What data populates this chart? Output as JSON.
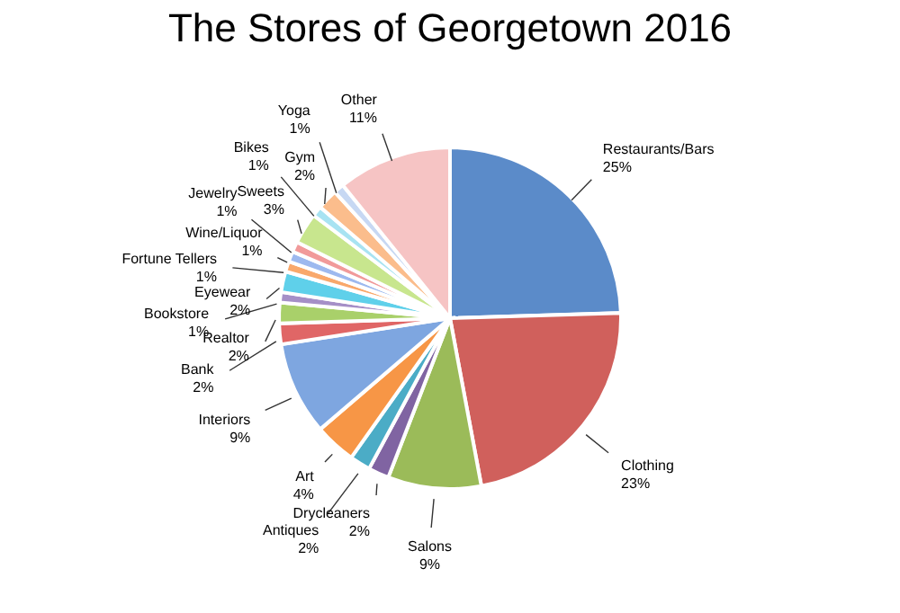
{
  "chart_data": {
    "type": "pie",
    "title": "The Stores of Georgetown 2016",
    "categories": [
      "Restaurants/Bars",
      "Clothing",
      "Salons",
      "Drycleaners",
      "Antiques",
      "Art",
      "Interiors",
      "Bank",
      "Realtor",
      "Bookstore",
      "Eyewear",
      "Fortune Tellers",
      "Wine/Liquor",
      "Jewelry",
      "Sweets",
      "Bikes",
      "Gym",
      "Yoga",
      "Other"
    ],
    "values": [
      25,
      23,
      9,
      2,
      2,
      4,
      9,
      2,
      2,
      1,
      2,
      1,
      1,
      1,
      3,
      1,
      2,
      1,
      11
    ],
    "value_labels": [
      "25%",
      "23%",
      "9%",
      "2%",
      "2%",
      "4%",
      "9%",
      "2%",
      "2%",
      "1%",
      "2%",
      "1%",
      "1%",
      "1%",
      "3%",
      "1%",
      "2%",
      "1%",
      "11%"
    ],
    "colors": [
      "#5b8bc9",
      "#d0605c",
      "#9bbb59",
      "#8064a2",
      "#4bacc6",
      "#f79646",
      "#7ea6e0",
      "#e06666",
      "#a9d06a",
      "#a58fc7",
      "#5fd0ea",
      "#f9a86b",
      "#9db9ef",
      "#f19a9a",
      "#c8e68e",
      "#a8e3f2",
      "#fbbd8c",
      "#c7d8f3",
      "#f6c4c4"
    ]
  }
}
